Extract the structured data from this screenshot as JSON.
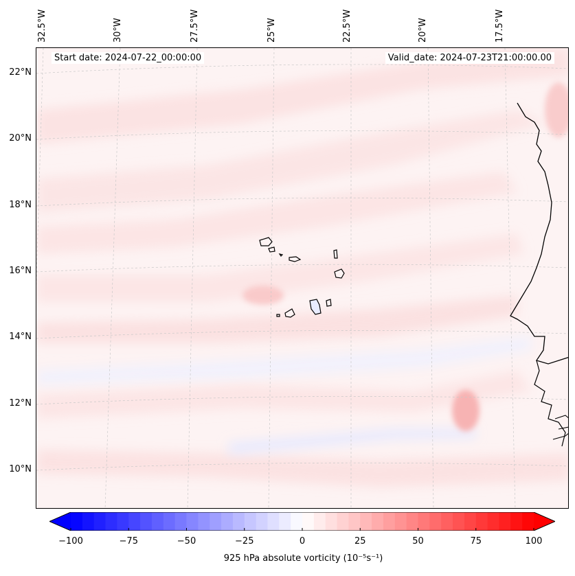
{
  "map": {
    "start_date": "Start date: 2024-07-22_00:00:00",
    "valid_date": "Valid_date: 2024-07-23T21:00:00.00",
    "lon_labels": [
      "32.5°W",
      "30°W",
      "27.5°W",
      "25°W",
      "22.5°W",
      "20°W",
      "17.5°W"
    ],
    "lat_labels": [
      "22°N",
      "20°N",
      "18°N",
      "16°N",
      "14°N",
      "12°N",
      "10°N"
    ]
  },
  "colorbar": {
    "tick_labels": [
      "−100",
      "−75",
      "−50",
      "−25",
      "0",
      "25",
      "50",
      "75",
      "100"
    ],
    "label": "925 hPa absolute vorticity (10⁻⁵s⁻¹)",
    "min": -100,
    "max": 100,
    "low_color": "#0000ff",
    "mid_color": "#ffffff",
    "high_color": "#ff0000"
  }
}
